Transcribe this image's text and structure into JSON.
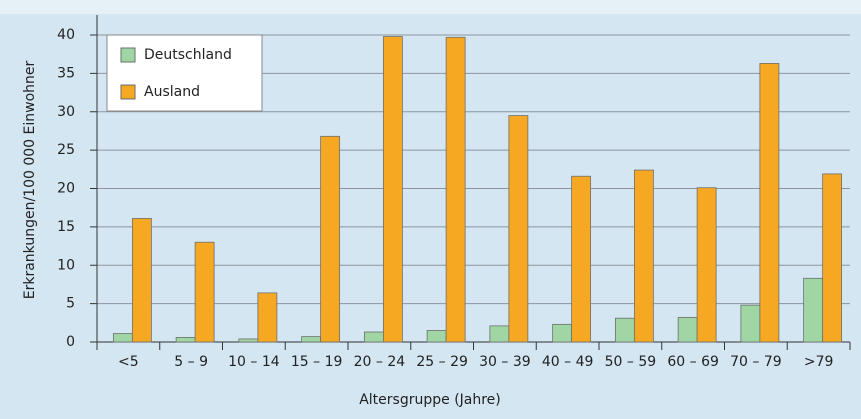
{
  "chart_data": {
    "type": "bar",
    "x_label": "Altersgruppe (Jahre)",
    "y_label": "Erkrankungen/100 000 Einwohner",
    "categories": [
      "<5",
      "5 – 9",
      "10 – 14",
      "15 – 19",
      "20 – 24",
      "25 – 29",
      "30 – 39",
      "40 – 49",
      "50 – 59",
      "60 – 69",
      "70 – 79",
      ">79"
    ],
    "series": [
      {
        "name": "Deutschland",
        "color": "#9fd6a3",
        "values": [
          1.1,
          0.6,
          0.4,
          0.7,
          1.3,
          1.5,
          2.1,
          2.3,
          3.1,
          3.2,
          4.8,
          8.3
        ]
      },
      {
        "name": "Ausland",
        "color": "#f7a823",
        "values": [
          16.1,
          13.0,
          6.4,
          26.8,
          39.8,
          39.7,
          29.5,
          21.6,
          22.4,
          20.1,
          36.3,
          21.9
        ]
      }
    ],
    "ylim": [
      0,
      40
    ],
    "yticks": [
      0,
      5,
      10,
      15,
      20,
      25,
      30,
      35,
      40
    ],
    "grid": true,
    "legend": "upper left"
  }
}
